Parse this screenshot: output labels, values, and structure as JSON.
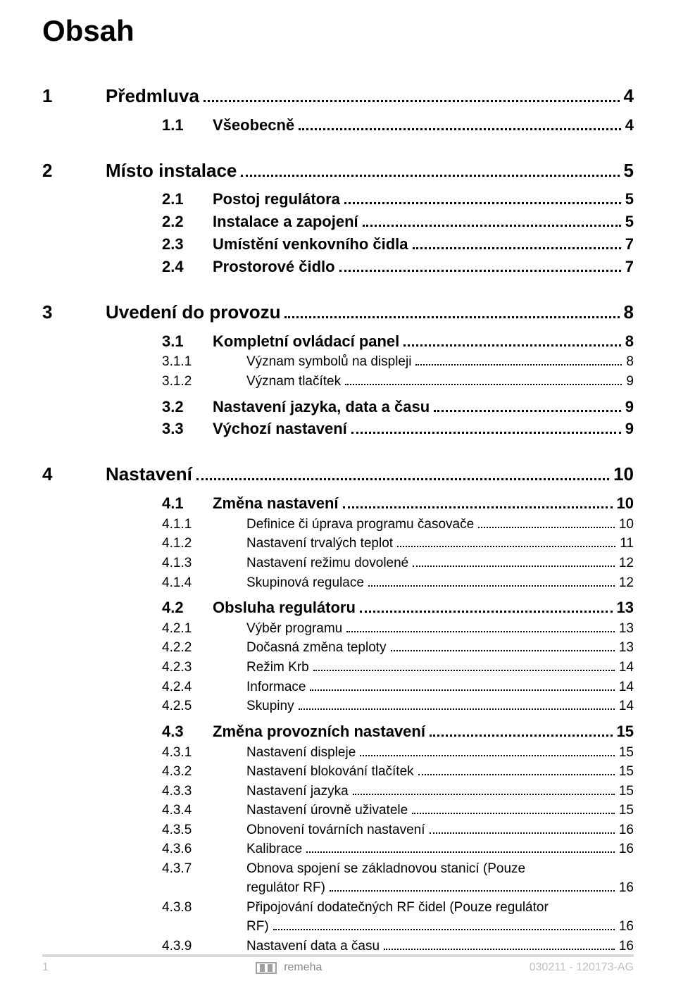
{
  "title": "Obsah",
  "entries": [
    {
      "kind": "lvl1",
      "num": "1",
      "text": "Předmluva",
      "page": "4"
    },
    {
      "kind": "spacer-sm"
    },
    {
      "kind": "lvl2",
      "num": "1.1",
      "text": "Všeobecně",
      "page": "4"
    },
    {
      "kind": "spacer-lg"
    },
    {
      "kind": "lvl1",
      "num": "2",
      "text": "Místo instalace",
      "page": "5"
    },
    {
      "kind": "spacer-sm"
    },
    {
      "kind": "lvl2",
      "num": "2.1",
      "text": "Postoj regulátora",
      "page": "5"
    },
    {
      "kind": "lvl2",
      "num": "2.2",
      "text": "Instalace a zapojení",
      "page": "5"
    },
    {
      "kind": "lvl2",
      "num": "2.3",
      "text": "Umístění venkovního čidla",
      "page": "7"
    },
    {
      "kind": "lvl2",
      "num": "2.4",
      "text": "Prostorové čidlo",
      "page": "7"
    },
    {
      "kind": "spacer-lg"
    },
    {
      "kind": "lvl1",
      "num": "3",
      "text": "Uvedení do provozu",
      "page": "8"
    },
    {
      "kind": "spacer-sm"
    },
    {
      "kind": "lvl2",
      "num": "3.1",
      "text": "Kompletní ovládací panel",
      "page": "8"
    },
    {
      "kind": "lvl3",
      "num": "3.1.1",
      "text": "Význam symbolů na displeji",
      "page": "8"
    },
    {
      "kind": "lvl3",
      "num": "3.1.2",
      "text": "Význam tlačítek",
      "page": "9"
    },
    {
      "kind": "spacer-sm"
    },
    {
      "kind": "lvl2",
      "num": "3.2",
      "text": "Nastavení jazyka, data a času",
      "page": "9"
    },
    {
      "kind": "lvl2",
      "num": "3.3",
      "text": "Výchozí nastavení",
      "page": "9"
    },
    {
      "kind": "spacer-lg"
    },
    {
      "kind": "lvl1",
      "num": "4",
      "text": "Nastavení",
      "page": "10"
    },
    {
      "kind": "spacer-sm"
    },
    {
      "kind": "lvl2",
      "num": "4.1",
      "text": "Změna nastavení",
      "page": "10"
    },
    {
      "kind": "lvl3",
      "num": "4.1.1",
      "text": "Definice či úprava programu časovače",
      "page": "10"
    },
    {
      "kind": "lvl3",
      "num": "4.1.2",
      "text": "Nastavení trvalých teplot",
      "page": "11"
    },
    {
      "kind": "lvl3",
      "num": "4.1.3",
      "text": "Nastavení režimu dovolené",
      "page": "12"
    },
    {
      "kind": "lvl3",
      "num": "4.1.4",
      "text": "Skupinová regulace",
      "page": "12"
    },
    {
      "kind": "spacer-sm"
    },
    {
      "kind": "lvl2",
      "num": "4.2",
      "text": "Obsluha regulátoru",
      "page": "13"
    },
    {
      "kind": "lvl3",
      "num": "4.2.1",
      "text": "Výběr programu",
      "page": "13"
    },
    {
      "kind": "lvl3",
      "num": "4.2.2",
      "text": "Dočasná změna teploty",
      "page": "13"
    },
    {
      "kind": "lvl3",
      "num": "4.2.3",
      "text": "Režim Krb",
      "page": "14"
    },
    {
      "kind": "lvl3",
      "num": "4.2.4",
      "text": "Informace",
      "page": "14"
    },
    {
      "kind": "lvl3",
      "num": "4.2.5",
      "text": "Skupiny",
      "page": "14"
    },
    {
      "kind": "spacer-sm"
    },
    {
      "kind": "lvl2",
      "num": "4.3",
      "text": "Změna provozních nastavení",
      "page": "15"
    },
    {
      "kind": "lvl3",
      "num": "4.3.1",
      "text": "Nastavení displeje",
      "page": "15"
    },
    {
      "kind": "lvl3",
      "num": "4.3.2",
      "text": "Nastavení blokování tlačítek",
      "page": "15"
    },
    {
      "kind": "lvl3",
      "num": "4.3.3",
      "text": "Nastavení jazyka",
      "page": "15"
    },
    {
      "kind": "lvl3",
      "num": "4.3.4",
      "text": "Nastavení úrovně uživatele",
      "page": "15"
    },
    {
      "kind": "lvl3",
      "num": "4.3.5",
      "text": "Obnovení továrních nastavení",
      "page": "16"
    },
    {
      "kind": "lvl3",
      "num": "4.3.6",
      "text": "Kalibrace",
      "page": "16"
    },
    {
      "kind": "lvl3",
      "num": "4.3.7",
      "text": "Obnova spojení se základnovou stanicí (Pouze"
    },
    {
      "kind": "lvl3-cont",
      "text": "regulátor RF)",
      "page": "16"
    },
    {
      "kind": "lvl3",
      "num": "4.3.8",
      "text": "Připojování dodatečných RF čidel (Pouze regulátor"
    },
    {
      "kind": "lvl3-cont",
      "text": "RF)",
      "page": "16"
    },
    {
      "kind": "lvl3",
      "num": "4.3.9",
      "text": "Nastavení data a času",
      "page": "16"
    }
  ],
  "footer": {
    "page_number": "1",
    "brand": "remeha",
    "doc_code": "030211  - 120173-AG",
    "rule_color": "#d9d9d9",
    "text_color": "#bfbfbf"
  }
}
